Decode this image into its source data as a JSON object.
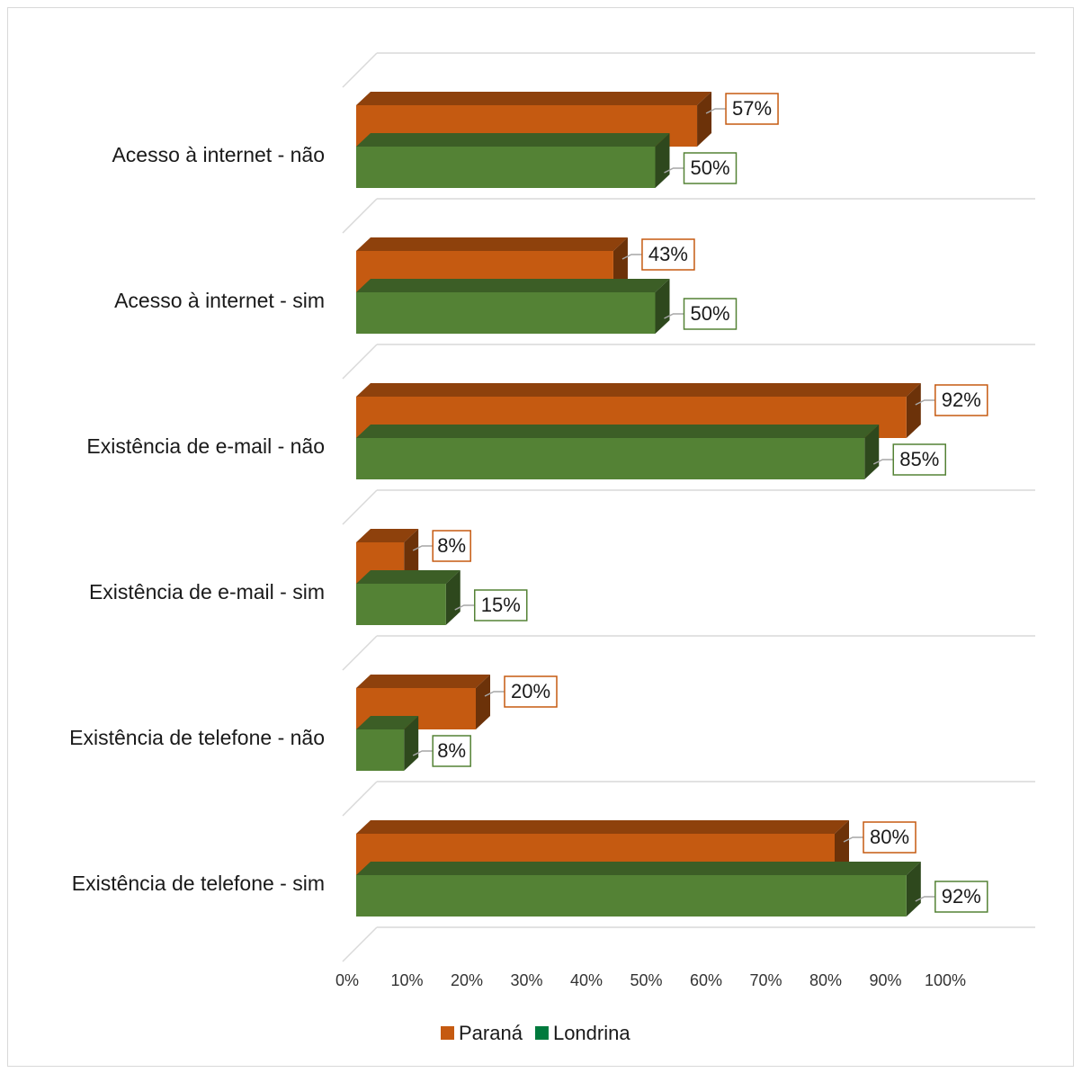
{
  "chart_data": {
    "type": "bar",
    "orientation": "horizontal",
    "style": "3d-clustered",
    "categories": [
      "Acesso à internet - não",
      "Acesso à internet - sim",
      "Existência de e-mail - não",
      "Existência de e-mail - sim",
      "Existência de telefone - não",
      "Existência de telefone - sim"
    ],
    "series": [
      {
        "name": "Paraná",
        "color": "#c55a11",
        "values": [
          57,
          43,
          92,
          8,
          20,
          80
        ],
        "labels": [
          "57%",
          "43%",
          "92%",
          "8%",
          "20%",
          "80%"
        ]
      },
      {
        "name": "Londrina",
        "color": "#548235",
        "values": [
          50,
          50,
          85,
          15,
          8,
          92
        ],
        "labels": [
          "50%",
          "50%",
          "85%",
          "15%",
          "8%",
          "92%"
        ]
      }
    ],
    "xlim": [
      0,
      100
    ],
    "xticks": [
      "0%",
      "10%",
      "20%",
      "30%",
      "40%",
      "50%",
      "60%",
      "70%",
      "80%",
      "90%",
      "100%"
    ],
    "grid": true,
    "legend": {
      "position": "bottom",
      "entries": [
        {
          "name": "Paraná",
          "color": "#c55a11"
        },
        {
          "name": "Londrina",
          "color": "#007a3d"
        }
      ]
    }
  }
}
